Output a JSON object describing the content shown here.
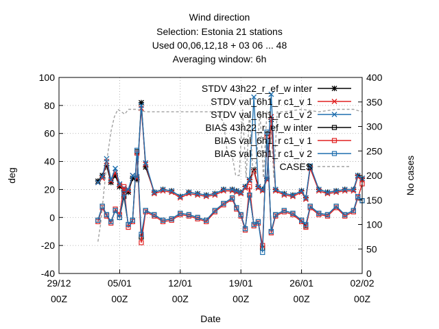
{
  "chart_data": {
    "type": "line",
    "title_lines": [
      "Wind direction",
      "Selection: Estonia      21 stations",
      "Used  00,06,12,18  + 03 06 ... 48",
      "Averaging window:  6h"
    ],
    "xlabel": "Date",
    "ylabel": "deg",
    "y2label": "No cases",
    "ylim": [
      -40,
      100
    ],
    "y2lim": [
      0,
      400
    ],
    "yticks": [
      -40,
      -20,
      0,
      20,
      40,
      60,
      80,
      100
    ],
    "y2ticks": [
      0,
      50,
      100,
      150,
      200,
      250,
      300,
      350,
      400
    ],
    "x_day_range": [
      0,
      35
    ],
    "xticks": [
      {
        "day": 0,
        "line1": "29/12",
        "line2": "00Z"
      },
      {
        "day": 7,
        "line1": "05/01",
        "line2": "00Z"
      },
      {
        "day": 14,
        "line1": "12/01",
        "line2": "00Z"
      },
      {
        "day": 21,
        "line1": "19/01",
        "line2": "00Z"
      },
      {
        "day": 28,
        "line1": "26/01",
        "line2": "00Z"
      },
      {
        "day": 35,
        "line1": "02/02",
        "line2": "00Z"
      }
    ],
    "grid": true,
    "legend_position": "top-right",
    "series": [
      {
        "name": "STDV 43h22_r_ef_w inter",
        "legend_text": "STDV 43h22_r_ef_w inter",
        "color": "#000000",
        "marker": "star",
        "axis": "y",
        "dash": "solid",
        "x": [
          4.5,
          5.0,
          5.5,
          6.0,
          6.5,
          7.0,
          7.5,
          8.0,
          8.5,
          9.0,
          9.5,
          10.0,
          11.0,
          12.0,
          13.0,
          14.0,
          15.0,
          16.0,
          17.0,
          18.0,
          19.0,
          20.0,
          20.5,
          21.0,
          21.5,
          22.0,
          22.5,
          23.0,
          23.5,
          24.0,
          24.5,
          25.0,
          26.0,
          27.0,
          28.0,
          28.5,
          29.0,
          30.0,
          31.0,
          32.0,
          33.0,
          34.0,
          34.5,
          35.0
        ],
        "y": [
          26,
          30,
          37,
          25,
          30,
          22,
          19,
          18,
          28,
          27,
          82,
          36,
          18,
          20,
          19,
          15,
          18,
          17,
          16,
          17,
          20,
          20,
          19,
          18,
          22,
          27,
          34,
          22,
          20,
          28,
          70,
          20,
          17,
          16,
          19,
          14,
          36,
          20,
          18,
          19,
          20,
          20,
          30,
          28
        ]
      },
      {
        "name": "STDV val_6h1_r c1_v 1",
        "legend_text": "STDV val_6h1_r c1_v 1",
        "color": "#e02020",
        "marker": "x",
        "axis": "y",
        "dash": "solid",
        "x": [
          4.5,
          5.0,
          5.5,
          6.0,
          6.5,
          7.0,
          7.5,
          8.0,
          8.5,
          9.0,
          9.5,
          10.0,
          11.0,
          12.0,
          13.0,
          14.0,
          15.0,
          16.0,
          17.0,
          18.0,
          19.0,
          20.0,
          20.5,
          21.0,
          21.5,
          22.0,
          22.5,
          23.0,
          23.5,
          24.0,
          24.5,
          25.0,
          26.0,
          27.0,
          28.0,
          28.5,
          29.0,
          30.0,
          31.0,
          32.0,
          33.0,
          34.0,
          34.5,
          35.0
        ],
        "y": [
          25,
          28,
          40,
          26,
          32,
          23,
          20,
          19,
          30,
          28,
          78,
          38,
          17,
          19,
          18,
          14,
          17,
          16,
          15,
          16,
          19,
          19,
          18,
          17,
          21,
          26,
          33,
          21,
          19,
          27,
          72,
          19,
          16,
          15,
          18,
          13,
          35,
          19,
          17,
          18,
          19,
          19,
          29,
          27
        ]
      },
      {
        "name": "STDV val_6h1_r c1_v 2",
        "legend_text": "STDV val_6h1_r c1_v 2",
        "color": "#1f6fae",
        "marker": "x",
        "axis": "y",
        "dash": "solid",
        "x": [
          4.5,
          5.0,
          5.5,
          6.0,
          6.5,
          7.0,
          7.5,
          8.0,
          8.5,
          9.0,
          9.5,
          10.0,
          11.0,
          12.0,
          13.0,
          14.0,
          15.0,
          16.0,
          17.0,
          18.0,
          19.0,
          20.0,
          20.5,
          21.0,
          21.5,
          22.0,
          22.5,
          23.0,
          23.5,
          24.0,
          24.5,
          25.0,
          26.0,
          27.0,
          28.0,
          28.5,
          29.0,
          30.0,
          31.0,
          32.0,
          33.0,
          34.0,
          34.5,
          35.0
        ],
        "y": [
          25,
          29,
          42,
          27,
          35,
          24,
          21,
          20,
          30,
          29,
          80,
          39,
          18,
          20,
          19,
          15,
          18,
          17,
          16,
          17,
          20,
          20,
          19,
          18,
          22,
          27,
          86,
          22,
          20,
          28,
          88,
          20,
          17,
          16,
          19,
          14,
          37,
          20,
          18,
          19,
          20,
          20,
          30,
          28
        ]
      },
      {
        "name": "BIAS 43h22_r_ef_w inter",
        "legend_text": "BIAS 43h22_r_ef_w inter",
        "color": "#000000",
        "marker": "square",
        "axis": "y",
        "dash": "solid",
        "x": [
          4.5,
          5.0,
          5.5,
          6.0,
          6.5,
          7.0,
          7.5,
          8.0,
          8.5,
          9.0,
          9.5,
          10.0,
          11.0,
          12.0,
          13.0,
          14.0,
          15.0,
          16.0,
          17.0,
          18.0,
          19.0,
          20.0,
          20.5,
          21.0,
          21.5,
          22.0,
          22.5,
          23.0,
          23.5,
          24.0,
          24.5,
          25.0,
          26.0,
          27.0,
          28.0,
          28.5,
          29.0,
          30.0,
          31.0,
          32.0,
          33.0,
          34.0,
          34.5,
          35.0
        ],
        "y": [
          -2,
          8,
          2,
          -3,
          5,
          0,
          15,
          -5,
          -2,
          47,
          -14,
          5,
          2,
          -2,
          -1,
          3,
          2,
          0,
          -2,
          5,
          10,
          14,
          7,
          2,
          -8,
          16,
          -5,
          -3,
          -22,
          60,
          -10,
          2,
          5,
          3,
          -2,
          -6,
          8,
          3,
          2,
          8,
          2,
          5,
          15,
          12
        ]
      },
      {
        "name": "BIAS val_6h1_r c1_v 1",
        "legend_text": "BIAS val_6h1_r c1_v 1",
        "color": "#e02020",
        "marker": "square",
        "axis": "y",
        "dash": "solid",
        "x": [
          4.5,
          5.0,
          5.5,
          6.0,
          6.5,
          7.0,
          7.5,
          8.0,
          8.5,
          9.0,
          9.5,
          10.0,
          11.0,
          12.0,
          13.0,
          14.0,
          15.0,
          16.0,
          17.0,
          18.0,
          19.0,
          20.0,
          20.5,
          21.0,
          21.5,
          22.0,
          22.5,
          23.0,
          23.5,
          24.0,
          24.5,
          25.0,
          26.0,
          27.0,
          28.0,
          28.5,
          29.0,
          30.0,
          31.0,
          32.0,
          33.0,
          34.0,
          34.5,
          35.0
        ],
        "y": [
          -3,
          7,
          1,
          -4,
          6,
          2,
          22,
          -7,
          -3,
          46,
          -18,
          4,
          1,
          -3,
          -2,
          2,
          1,
          -1,
          -3,
          4,
          9,
          13,
          6,
          1,
          -9,
          22,
          -6,
          -4,
          -20,
          58,
          -11,
          1,
          4,
          2,
          -3,
          -7,
          7,
          2,
          1,
          7,
          1,
          4,
          14,
          24
        ]
      },
      {
        "name": "BIAS val_6h1_r c1_v 2",
        "legend_text": "BIAS val_6h1_r c1_v 2",
        "color": "#1f6fae",
        "marker": "square",
        "axis": "y",
        "dash": "solid",
        "x": [
          4.5,
          5.0,
          5.5,
          6.0,
          6.5,
          7.0,
          7.5,
          8.0,
          8.5,
          9.0,
          9.5,
          10.0,
          11.0,
          12.0,
          13.0,
          14.0,
          15.0,
          16.0,
          17.0,
          18.0,
          19.0,
          20.0,
          20.5,
          21.0,
          21.5,
          22.0,
          22.5,
          23.0,
          23.5,
          24.0,
          24.5,
          25.0,
          26.0,
          27.0,
          28.0,
          28.5,
          29.0,
          30.0,
          31.0,
          32.0,
          33.0,
          34.0,
          34.5,
          35.0
        ],
        "y": [
          -2,
          8,
          2,
          -3,
          5,
          0,
          17,
          -5,
          -2,
          48,
          -12,
          5,
          2,
          -2,
          -1,
          3,
          2,
          0,
          -2,
          5,
          10,
          14,
          7,
          2,
          -8,
          16,
          -5,
          -3,
          -25,
          61,
          -10,
          2,
          5,
          3,
          -2,
          -5,
          8,
          3,
          2,
          8,
          2,
          5,
          15,
          12
        ]
      },
      {
        "name": "CASES",
        "legend_text": "CASES",
        "color": "#a0a0a0",
        "marker": "none",
        "axis": "y2",
        "dash": "dashed",
        "x": [
          4.5,
          4.8,
          5.2,
          5.6,
          6.0,
          6.4,
          6.8,
          7.2,
          7.6,
          8.0,
          9.0,
          10.0,
          12.0,
          14.0,
          16.0,
          18.0,
          19.0,
          19.4,
          20.0,
          20.4,
          20.8,
          21.2,
          21.6,
          22.0,
          22.4,
          22.8,
          23.2,
          23.6,
          24.0,
          24.4,
          24.8,
          25.2,
          26.0,
          28.0,
          30.0,
          32.0,
          34.0,
          35.0
        ],
        "y": [
          65,
          100,
          170,
          240,
          290,
          320,
          335,
          330,
          325,
          335,
          335,
          330,
          330,
          330,
          330,
          330,
          310,
          250,
          240,
          200,
          200,
          335,
          195,
          330,
          200,
          230,
          330,
          195,
          330,
          320,
          195,
          330,
          330,
          335,
          330,
          335,
          335,
          330
        ]
      }
    ]
  }
}
